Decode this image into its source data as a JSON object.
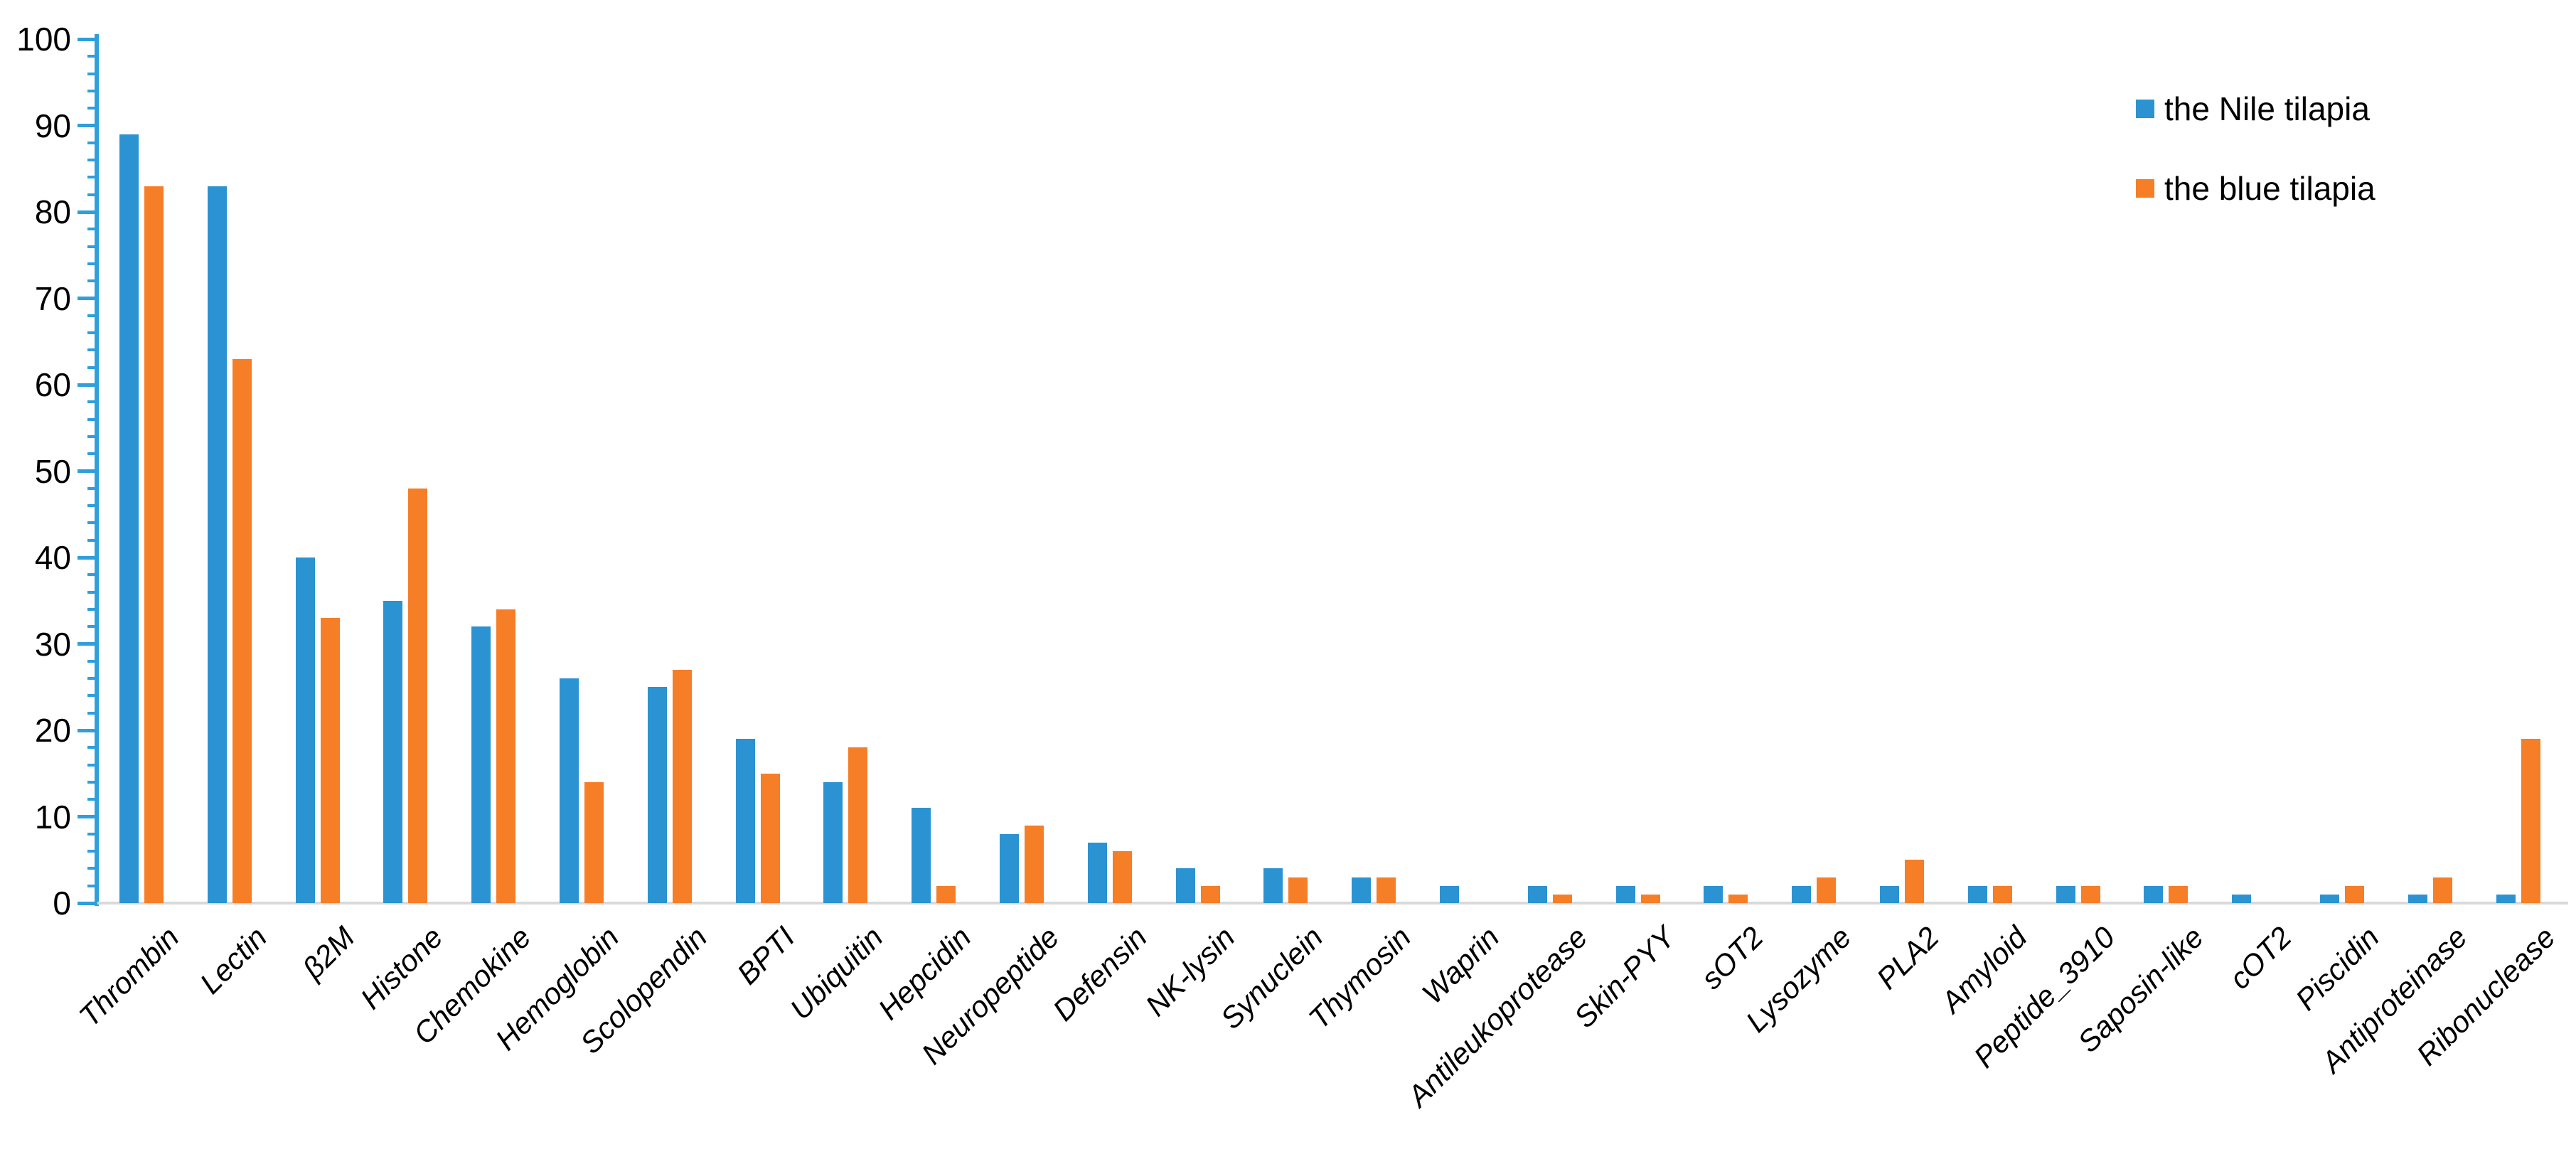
{
  "chart_data": {
    "type": "bar",
    "title": "",
    "xlabel": "",
    "ylabel": "",
    "categories": [
      "Thrombin",
      "Lectin",
      "β2M",
      "Histone",
      "Chemokine",
      "Hemoglobin",
      "Scolopendin",
      "BPTI",
      "Ubiquitin",
      "Hepcidin",
      "Neuropeptide",
      "Defensin",
      "NK-lysin",
      "Synuclein",
      "Thymosin",
      "Waprin",
      "Antileukoprotease",
      "Skin-PYY",
      "sOT2",
      "Lysozyme",
      "PLA2",
      "Amyloid",
      "Peptide_3910",
      "Saposin-like",
      "cOT2",
      "Piscidin",
      "Antiproteinase",
      "Ribonuclease"
    ],
    "series": [
      {
        "name": "the Nile tilapia",
        "color": "#2b93d1",
        "values": [
          89,
          83,
          40,
          35,
          32,
          26,
          25,
          19,
          14,
          11,
          8,
          7,
          4,
          4,
          3,
          2,
          2,
          2,
          2,
          2,
          2,
          2,
          2,
          2,
          1,
          1,
          1,
          1
        ]
      },
      {
        "name": "the blue tilapia",
        "color": "#f57e27",
        "values": [
          83,
          63,
          33,
          48,
          34,
          14,
          27,
          15,
          18,
          2,
          9,
          6,
          2,
          3,
          3,
          0,
          1,
          1,
          1,
          3,
          5,
          2,
          2,
          2,
          0,
          2,
          3,
          19
        ]
      }
    ],
    "ylim": [
      0,
      100
    ],
    "y_tick_step": 10,
    "y_minor_tick_step": 2,
    "grid": false,
    "legend_position": "top-right",
    "axis_color": "#2f9fdc",
    "baseline_color": "#d9d9d9",
    "label_color": "#000000"
  }
}
